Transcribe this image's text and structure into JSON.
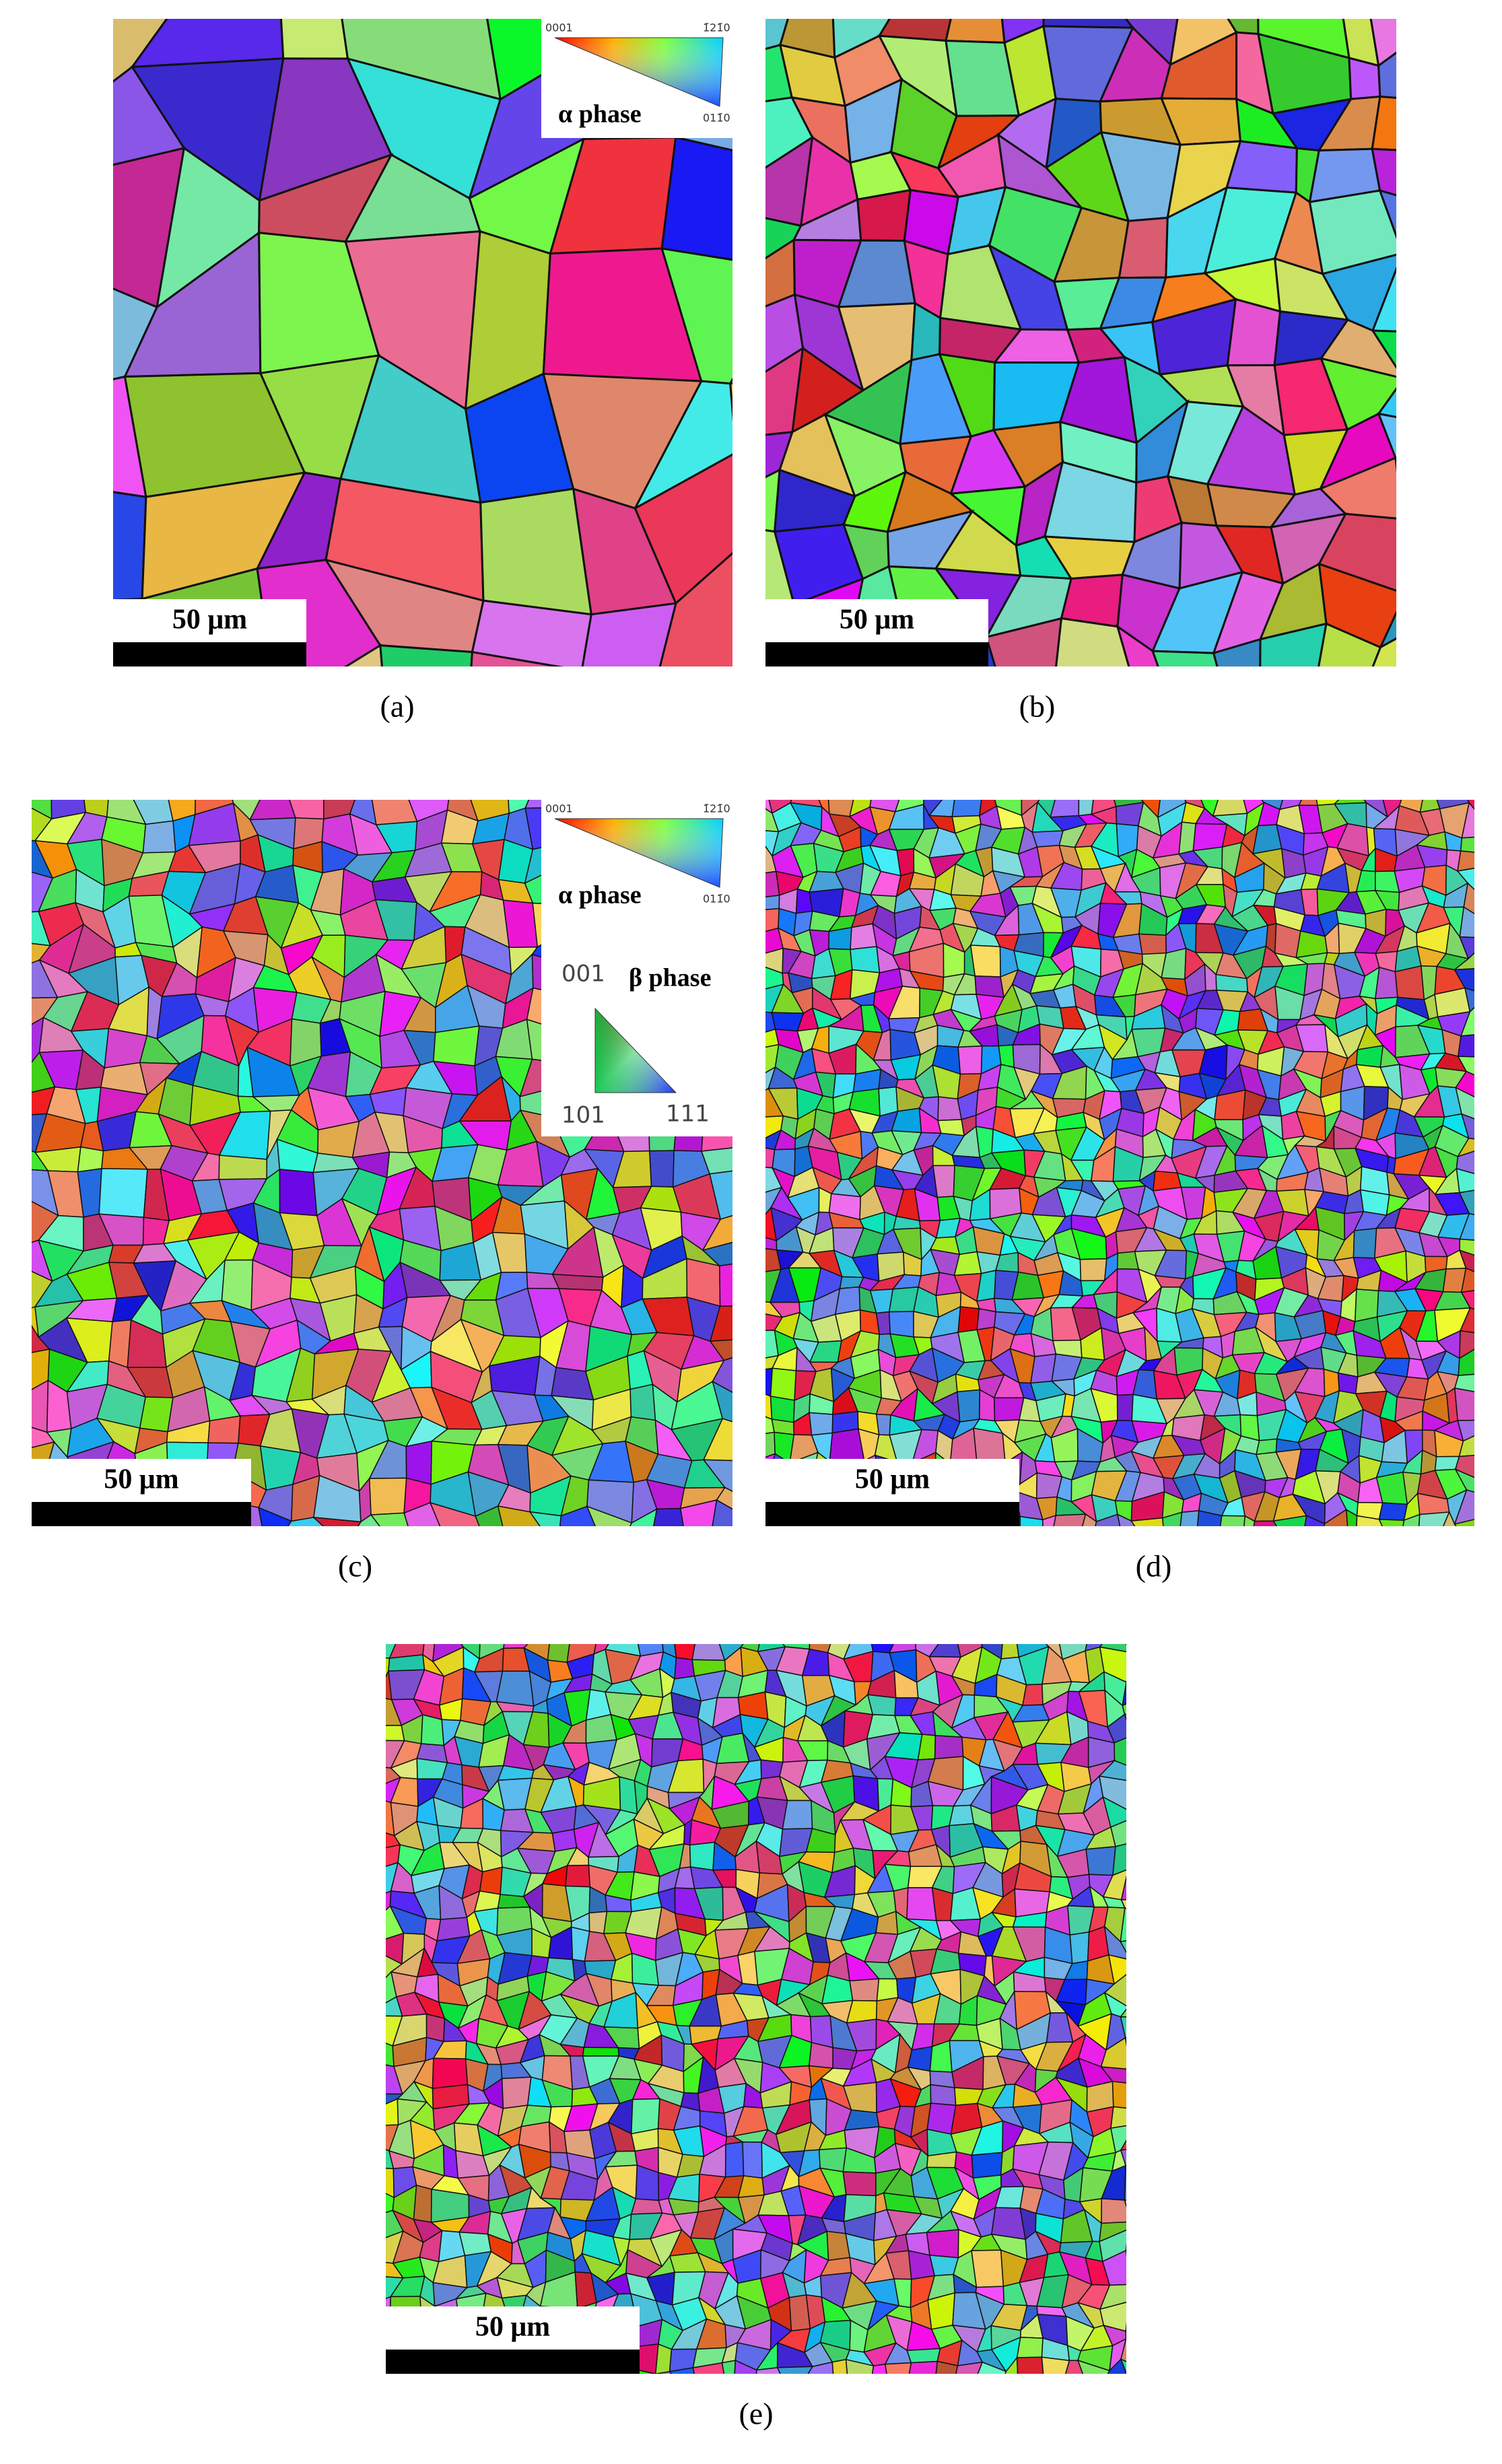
{
  "panels": [
    {
      "label": "(a)",
      "scale_bar": "50 μm",
      "alpha_legend": {
        "title": "α phase",
        "corners": [
          "0001",
          "1̄21̄0",
          "011̄0"
        ]
      }
    },
    {
      "label": "(b)",
      "scale_bar": "50 μm"
    },
    {
      "label": "(c)",
      "scale_bar": "50 μm",
      "alpha_legend": {
        "title": "α phase",
        "corners": [
          "0001",
          "1̄21̄0",
          "011̄0"
        ]
      },
      "beta_legend": {
        "title": "β phase",
        "corners": [
          "001",
          "101",
          "111"
        ]
      }
    },
    {
      "label": "(d)",
      "scale_bar": "50 μm"
    },
    {
      "label": "(e)",
      "scale_bar": "50 μm"
    }
  ]
}
